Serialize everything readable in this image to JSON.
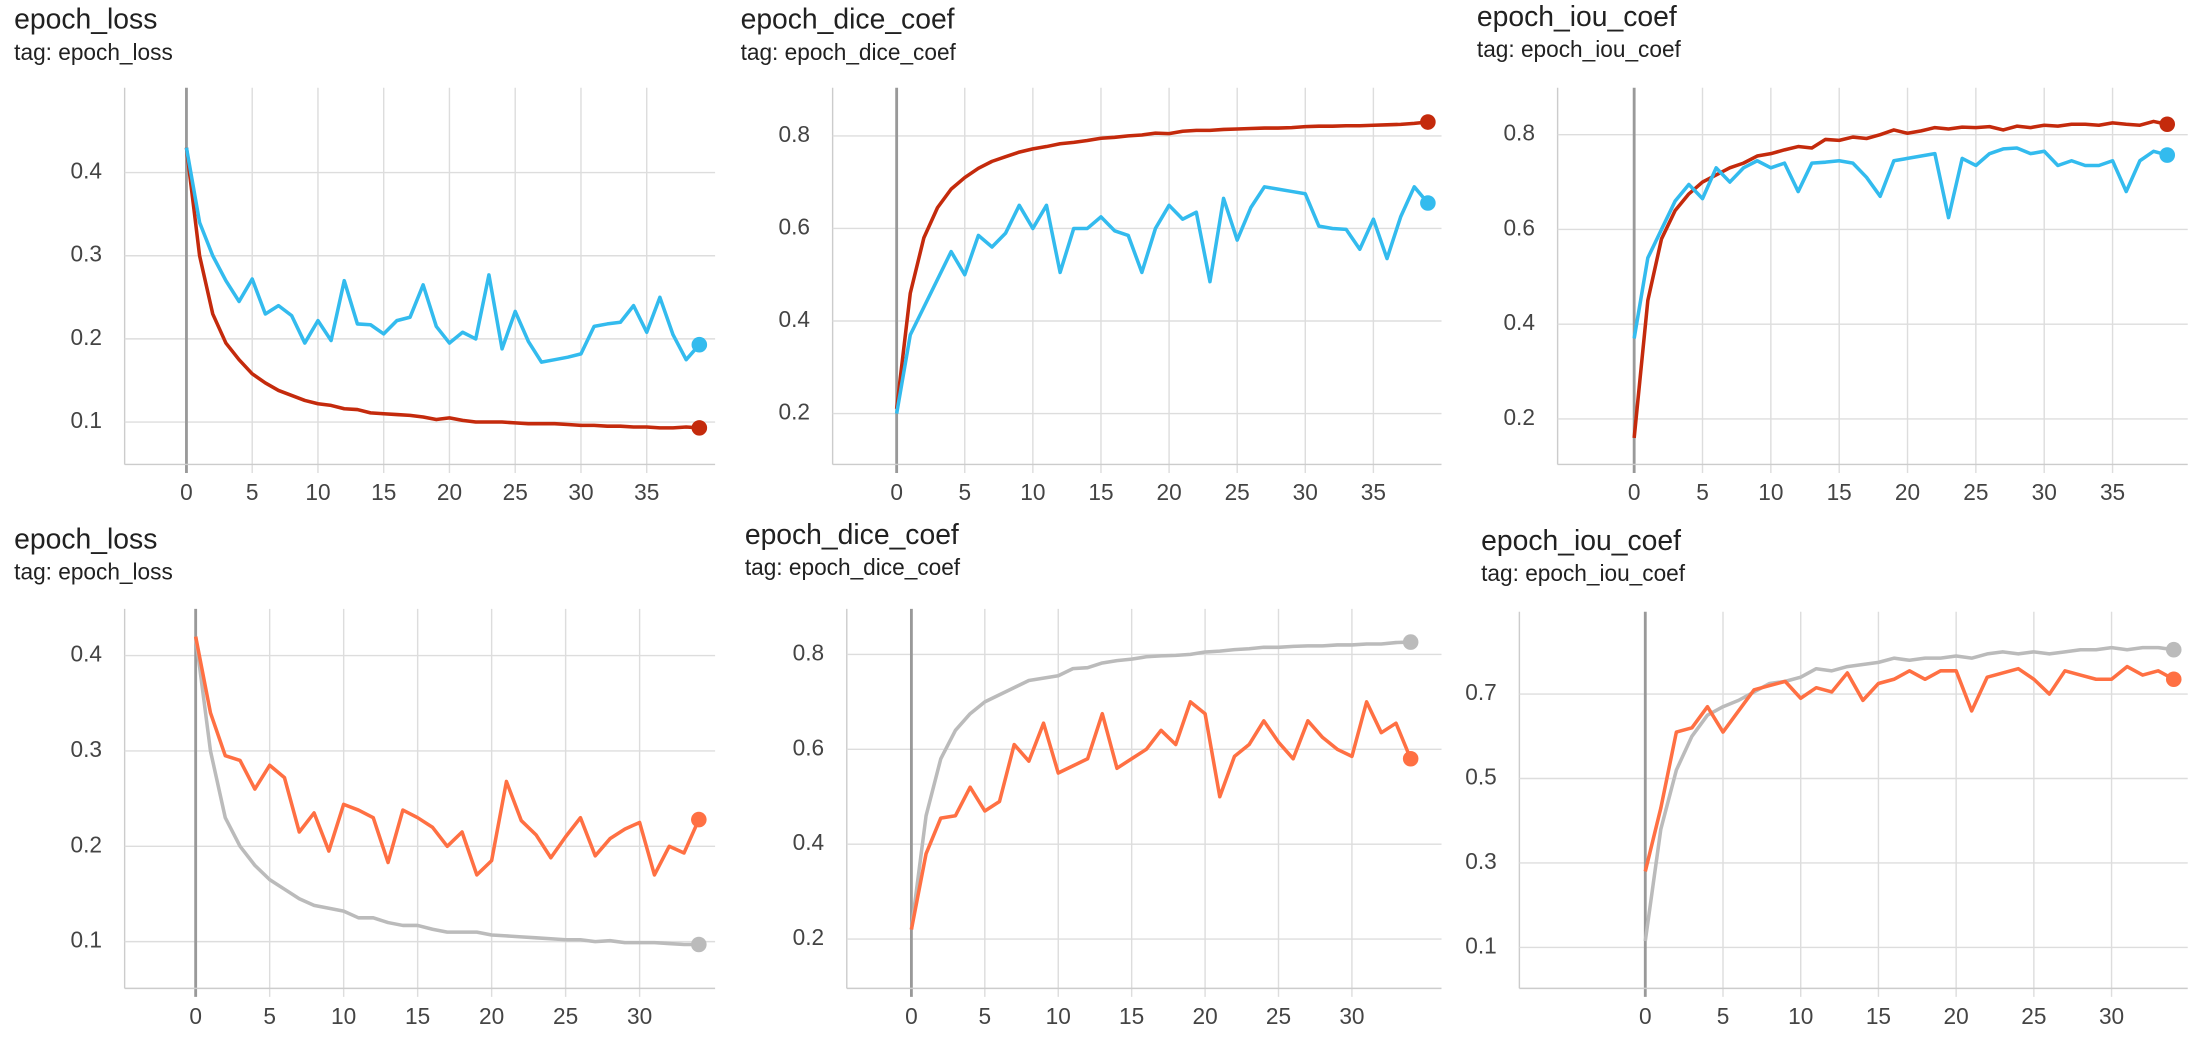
{
  "chart_data": [
    {
      "type": "line",
      "title": "epoch_loss",
      "subtitle": "tag: epoch_loss",
      "grid": true,
      "x": [
        0,
        1,
        2,
        3,
        4,
        5,
        6,
        7,
        8,
        9,
        10,
        11,
        12,
        13,
        14,
        15,
        16,
        17,
        18,
        19,
        20,
        21,
        22,
        23,
        24,
        25,
        26,
        27,
        28,
        29,
        30,
        31,
        32,
        33,
        34,
        35,
        36,
        37,
        38,
        39
      ],
      "xlim": [
        -4.7,
        40.2
      ],
      "xticks": [
        0,
        5,
        10,
        15,
        20,
        25,
        30,
        35
      ],
      "ylim": [
        0.049,
        0.502
      ],
      "yticks": [
        0.1,
        0.2,
        0.3,
        0.4
      ],
      "series": [
        {
          "color": "#c42a0c",
          "values": [
            0.43,
            0.3,
            0.23,
            0.195,
            0.175,
            0.158,
            0.147,
            0.138,
            0.132,
            0.126,
            0.122,
            0.12,
            0.116,
            0.115,
            0.111,
            0.11,
            0.109,
            0.108,
            0.106,
            0.103,
            0.105,
            0.102,
            0.1,
            0.1,
            0.1,
            0.099,
            0.098,
            0.098,
            0.098,
            0.097,
            0.096,
            0.096,
            0.095,
            0.095,
            0.094,
            0.094,
            0.093,
            0.093,
            0.094,
            0.093
          ]
        },
        {
          "color": "#33bbee",
          "values": [
            0.43,
            0.34,
            0.3,
            0.27,
            0.245,
            0.272,
            0.23,
            0.24,
            0.228,
            0.195,
            0.222,
            0.198,
            0.27,
            0.218,
            0.217,
            0.206,
            0.222,
            0.226,
            0.265,
            0.215,
            0.195,
            0.208,
            0.2,
            0.277,
            0.188,
            0.233,
            0.197,
            0.172,
            0.175,
            0.178,
            0.182,
            0.215,
            0.218,
            0.22,
            0.24,
            0.208,
            0.25,
            0.205,
            0.175,
            0.193
          ]
        }
      ]
    },
    {
      "type": "line",
      "title": "epoch_dice_coef",
      "subtitle": "tag: epoch_dice_coef",
      "grid": true,
      "x": [
        0,
        1,
        2,
        3,
        4,
        5,
        6,
        7,
        8,
        9,
        10,
        11,
        12,
        13,
        14,
        15,
        16,
        17,
        18,
        19,
        20,
        21,
        22,
        23,
        24,
        25,
        26,
        27,
        28,
        29,
        30,
        31,
        32,
        33,
        34,
        35,
        36,
        37,
        38,
        39
      ],
      "xlim": [
        -4.7,
        40.0
      ],
      "xticks": [
        0,
        5,
        10,
        15,
        20,
        25,
        30,
        35
      ],
      "ylim": [
        0.09,
        0.904
      ],
      "yticks": [
        0.2,
        0.4,
        0.6,
        0.8
      ],
      "series": [
        {
          "color": "#c42a0c",
          "values": [
            0.21,
            0.46,
            0.58,
            0.645,
            0.685,
            0.71,
            0.73,
            0.745,
            0.755,
            0.765,
            0.772,
            0.777,
            0.783,
            0.786,
            0.79,
            0.795,
            0.797,
            0.8,
            0.802,
            0.806,
            0.805,
            0.81,
            0.812,
            0.812,
            0.814,
            0.815,
            0.816,
            0.817,
            0.817,
            0.818,
            0.82,
            0.821,
            0.821,
            0.822,
            0.822,
            0.823,
            0.824,
            0.825,
            0.827,
            0.83
          ]
        },
        {
          "color": "#33bbee",
          "values": [
            0.2,
            0.37,
            0.43,
            0.49,
            0.55,
            0.5,
            0.585,
            0.56,
            0.59,
            0.65,
            0.6,
            0.65,
            0.505,
            0.6,
            0.6,
            0.625,
            0.595,
            0.585,
            0.505,
            0.6,
            0.65,
            0.62,
            0.635,
            0.485,
            0.665,
            0.575,
            0.645,
            0.69,
            0.685,
            0.68,
            0.675,
            0.605,
            0.6,
            0.598,
            0.555,
            0.62,
            0.535,
            0.625,
            0.69,
            0.655
          ]
        }
      ]
    },
    {
      "type": "line",
      "title": "epoch_iou_coef",
      "subtitle": "tag: epoch_iou_coef",
      "grid": true,
      "x": [
        0,
        1,
        2,
        3,
        4,
        5,
        6,
        7,
        8,
        9,
        10,
        11,
        12,
        13,
        14,
        15,
        16,
        17,
        18,
        19,
        20,
        21,
        22,
        23,
        24,
        25,
        26,
        27,
        28,
        29,
        30,
        31,
        32,
        33,
        34,
        35,
        36,
        37,
        38,
        39
      ],
      "xlim": [
        -5.6,
        40.5
      ],
      "xticks": [
        0,
        5,
        10,
        15,
        20,
        25,
        30,
        35
      ],
      "ylim": [
        0.104,
        0.899
      ],
      "yticks": [
        0.2,
        0.4,
        0.6,
        0.8
      ],
      "series": [
        {
          "color": "#c42a0c",
          "values": [
            0.16,
            0.45,
            0.58,
            0.64,
            0.675,
            0.7,
            0.715,
            0.73,
            0.74,
            0.755,
            0.76,
            0.768,
            0.775,
            0.772,
            0.79,
            0.788,
            0.795,
            0.792,
            0.8,
            0.81,
            0.803,
            0.808,
            0.815,
            0.812,
            0.816,
            0.815,
            0.817,
            0.81,
            0.818,
            0.815,
            0.82,
            0.818,
            0.822,
            0.822,
            0.82,
            0.825,
            0.822,
            0.82,
            0.828,
            0.822
          ]
        },
        {
          "color": "#33bbee",
          "values": [
            0.37,
            0.54,
            0.6,
            0.66,
            0.695,
            0.665,
            0.73,
            0.7,
            0.73,
            0.745,
            0.73,
            0.74,
            0.68,
            0.74,
            0.742,
            0.745,
            0.74,
            0.71,
            0.67,
            0.745,
            0.75,
            0.755,
            0.76,
            0.625,
            0.75,
            0.735,
            0.76,
            0.77,
            0.772,
            0.76,
            0.765,
            0.735,
            0.745,
            0.735,
            0.735,
            0.745,
            0.68,
            0.745,
            0.765,
            0.757
          ]
        }
      ]
    },
    {
      "type": "line",
      "title": "epoch_loss",
      "subtitle": "tag: epoch_loss",
      "grid": true,
      "x": [
        0,
        1,
        2,
        3,
        4,
        5,
        6,
        7,
        8,
        9,
        10,
        11,
        12,
        13,
        14,
        15,
        16,
        17,
        18,
        19,
        20,
        21,
        22,
        23,
        24,
        25,
        26,
        27,
        28,
        29,
        30,
        31,
        32,
        33,
        34
      ],
      "xlim": [
        -4.8,
        35.1
      ],
      "xticks": [
        0,
        5,
        10,
        15,
        20,
        25,
        30
      ],
      "ylim": [
        0.051,
        0.449
      ],
      "yticks": [
        0.1,
        0.2,
        0.3,
        0.4
      ],
      "series": [
        {
          "color": "#bbbbbb",
          "values": [
            0.42,
            0.3,
            0.23,
            0.2,
            0.18,
            0.165,
            0.155,
            0.145,
            0.138,
            0.135,
            0.132,
            0.125,
            0.125,
            0.12,
            0.117,
            0.117,
            0.113,
            0.11,
            0.11,
            0.11,
            0.107,
            0.106,
            0.105,
            0.104,
            0.103,
            0.102,
            0.102,
            0.1,
            0.101,
            0.099,
            0.099,
            0.099,
            0.098,
            0.097,
            0.097
          ]
        },
        {
          "color": "#ff7043",
          "values": [
            0.42,
            0.34,
            0.295,
            0.29,
            0.26,
            0.285,
            0.272,
            0.215,
            0.235,
            0.195,
            0.244,
            0.238,
            0.23,
            0.183,
            0.238,
            0.23,
            0.22,
            0.2,
            0.215,
            0.17,
            0.185,
            0.268,
            0.227,
            0.212,
            0.188,
            0.21,
            0.23,
            0.19,
            0.208,
            0.218,
            0.225,
            0.17,
            0.2,
            0.193,
            0.228
          ]
        }
      ]
    },
    {
      "type": "line",
      "title": "epoch_dice_coef",
      "subtitle": "tag: epoch_dice_coef",
      "grid": true,
      "x": [
        0,
        1,
        2,
        3,
        4,
        5,
        6,
        7,
        8,
        9,
        10,
        11,
        12,
        13,
        14,
        15,
        16,
        17,
        18,
        19,
        20,
        21,
        22,
        23,
        24,
        25,
        26,
        27,
        28,
        29,
        30,
        31,
        32,
        33,
        34
      ],
      "xlim": [
        -4.4,
        36.1
      ],
      "xticks": [
        0,
        5,
        10,
        15,
        20,
        25,
        30
      ],
      "ylim": [
        0.096,
        0.896
      ],
      "yticks": [
        0.2,
        0.4,
        0.6,
        0.8
      ],
      "series": [
        {
          "color": "#bbbbbb",
          "values": [
            0.22,
            0.46,
            0.58,
            0.64,
            0.675,
            0.7,
            0.715,
            0.73,
            0.745,
            0.75,
            0.755,
            0.77,
            0.772,
            0.782,
            0.787,
            0.79,
            0.795,
            0.797,
            0.798,
            0.8,
            0.805,
            0.807,
            0.81,
            0.812,
            0.815,
            0.815,
            0.817,
            0.818,
            0.818,
            0.82,
            0.82,
            0.822,
            0.822,
            0.825,
            0.826
          ]
        },
        {
          "color": "#ff7043",
          "values": [
            0.22,
            0.38,
            0.455,
            0.46,
            0.52,
            0.47,
            0.49,
            0.61,
            0.575,
            0.655,
            0.55,
            0.565,
            0.58,
            0.675,
            0.56,
            0.58,
            0.6,
            0.64,
            0.61,
            0.7,
            0.675,
            0.5,
            0.585,
            0.61,
            0.66,
            0.615,
            0.58,
            0.66,
            0.625,
            0.6,
            0.585,
            0.7,
            0.635,
            0.655,
            0.58
          ]
        }
      ]
    },
    {
      "type": "line",
      "title": "epoch_iou_coef",
      "subtitle": "tag: epoch_iou_coef",
      "grid": true,
      "x": [
        0,
        1,
        2,
        3,
        4,
        5,
        6,
        7,
        8,
        9,
        10,
        11,
        12,
        13,
        14,
        15,
        16,
        17,
        18,
        19,
        20,
        21,
        22,
        23,
        24,
        25,
        26,
        27,
        28,
        29,
        30,
        31,
        32,
        33,
        34
      ],
      "xlim": [
        -8.1,
        34.9
      ],
      "xticks": [
        0,
        5,
        10,
        15,
        20,
        25,
        30
      ],
      "ylim": [
        0.003,
        0.895
      ],
      "yticks": [
        0.1,
        0.3,
        0.5,
        0.7
      ],
      "series": [
        {
          "color": "#bbbbbb",
          "values": [
            0.115,
            0.38,
            0.52,
            0.6,
            0.65,
            0.67,
            0.685,
            0.705,
            0.725,
            0.73,
            0.74,
            0.76,
            0.755,
            0.765,
            0.77,
            0.775,
            0.785,
            0.78,
            0.785,
            0.785,
            0.79,
            0.785,
            0.795,
            0.8,
            0.795,
            0.8,
            0.795,
            0.8,
            0.805,
            0.805,
            0.81,
            0.805,
            0.81,
            0.81,
            0.805
          ]
        },
        {
          "color": "#ff7043",
          "values": [
            0.28,
            0.43,
            0.61,
            0.62,
            0.67,
            0.61,
            0.66,
            0.71,
            0.72,
            0.73,
            0.69,
            0.715,
            0.705,
            0.75,
            0.685,
            0.725,
            0.735,
            0.755,
            0.735,
            0.755,
            0.755,
            0.66,
            0.74,
            0.75,
            0.76,
            0.735,
            0.7,
            0.755,
            0.745,
            0.735,
            0.735,
            0.765,
            0.745,
            0.755,
            0.735
          ]
        }
      ]
    }
  ]
}
